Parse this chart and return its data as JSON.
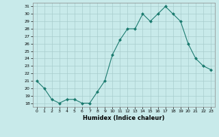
{
  "x": [
    0,
    1,
    2,
    3,
    4,
    5,
    6,
    7,
    8,
    9,
    10,
    11,
    12,
    13,
    14,
    15,
    16,
    17,
    18,
    19,
    20,
    21,
    22,
    23
  ],
  "y": [
    21,
    20,
    18.5,
    18,
    18.5,
    18.5,
    18,
    18,
    19.5,
    21,
    24.5,
    26.5,
    28,
    28,
    30,
    29,
    30,
    31,
    30,
    29,
    26,
    24,
    23,
    22.5
  ],
  "xlabel": "Humidex (Indice chaleur)",
  "line_color": "#1a7a6e",
  "marker_color": "#1a7a6e",
  "bg_color": "#c8eaea",
  "grid_color": "#a8cccc",
  "ylim": [
    17.5,
    31.5
  ],
  "xlim": [
    -0.5,
    23.5
  ],
  "yticks": [
    18,
    19,
    20,
    21,
    22,
    23,
    24,
    25,
    26,
    27,
    28,
    29,
    30,
    31
  ],
  "xticks": [
    0,
    1,
    2,
    3,
    4,
    5,
    6,
    7,
    8,
    9,
    10,
    11,
    12,
    13,
    14,
    15,
    16,
    17,
    18,
    19,
    20,
    21,
    22,
    23
  ]
}
